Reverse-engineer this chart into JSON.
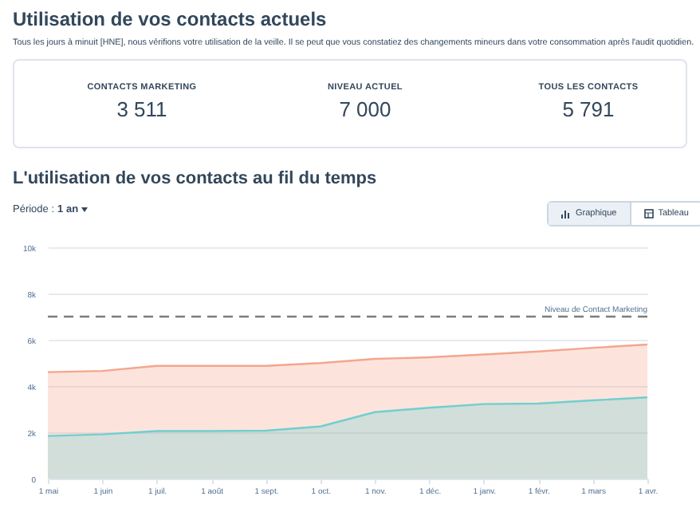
{
  "chart_data": {
    "type": "area",
    "title": "Utilisation de vos contacts actuels",
    "subtitle": "Tous les jours à minuit [HNE], nous vérifions votre utilisation de la veille. Il se peut que vous constatiez des changements mineurs dans votre consommation après l'audit quotidien.",
    "annotations": [
      "CONTACTS MARKETING",
      "3 511",
      "NIVEAU ACTUEL",
      "7 000",
      "TOUS LES CONTACTS",
      "5 791",
      "L'utilisation de vos contacts au fil du temps",
      "Période :",
      "1 an",
      "Graphique",
      "Tableau"
    ],
    "categories": [
      "1 mai",
      "1 juin",
      "1 juil.",
      "1 août",
      "1 sept.",
      "1 oct.",
      "1 nov.",
      "1 déc.",
      "1 janv.",
      "1 févr.",
      "1 mars",
      "1 avr."
    ],
    "series": [
      {
        "color": "#f5a58d",
        "values": [
          4600,
          4650,
          4870,
          4870,
          4870,
          4990,
          5170,
          5240,
          5360,
          5490,
          5650,
          5791
        ]
      },
      {
        "color": "#6fcfd0",
        "values": [
          1840,
          1910,
          2050,
          2050,
          2070,
          2250,
          2870,
          3060,
          3220,
          3240,
          3380,
          3511
        ]
      }
    ],
    "ylim": [
      0,
      10000
    ],
    "yticks": [
      0,
      {
        "value": 2000,
        "label": "2k"
      },
      {
        "value": 4000,
        "label": "4k"
      },
      {
        "value": 6000,
        "label": "6k"
      },
      {
        "value": 8000,
        "label": "8k"
      },
      {
        "value": 10000,
        "label": "10k"
      }
    ],
    "grid": "y",
    "ref_lines": [
      {
        "axis": "y",
        "value": 7000,
        "label": "Niveau de Contact Marketing",
        "color": "#7c7c7c",
        "line_style": "dashed"
      }
    ]
  }
}
